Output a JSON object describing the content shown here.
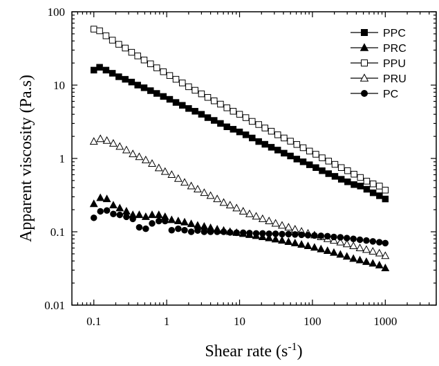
{
  "chart_data": {
    "type": "scatter",
    "xscale": "log",
    "yscale": "log",
    "xlim": [
      0.05,
      5000
    ],
    "ylim": [
      0.01,
      100
    ],
    "xlabel": "Shear rate (s",
    "xlabel_sup": "-1",
    "xlabel_close": ")",
    "ylabel": "Apparent viscosity (Pa.s)",
    "x_ticks": [
      {
        "value": 0.1,
        "label": "0.1"
      },
      {
        "value": 1,
        "label": "1"
      },
      {
        "value": 10,
        "label": "10"
      },
      {
        "value": 100,
        "label": "100"
      },
      {
        "value": 1000,
        "label": "1000"
      }
    ],
    "y_ticks": [
      {
        "value": 0.01,
        "label": "0.01"
      },
      {
        "value": 0.1,
        "label": "0.1"
      },
      {
        "value": 1,
        "label": "1"
      },
      {
        "value": 10,
        "label": "10"
      },
      {
        "value": 100,
        "label": "100"
      }
    ],
    "legend_position": "top-right",
    "series": [
      {
        "name": "PPC",
        "marker": "square",
        "filled": true,
        "x": [
          0.1,
          0.12,
          0.147,
          0.18,
          0.22,
          0.27,
          0.33,
          0.4,
          0.49,
          0.6,
          0.73,
          0.9,
          1.1,
          1.34,
          1.64,
          2.0,
          2.45,
          3.0,
          3.66,
          4.48,
          5.47,
          6.7,
          8.18,
          10,
          12.2,
          14.9,
          18.3,
          22.3,
          27.3,
          33.4,
          40.8,
          49.9,
          61,
          74.6,
          91.2,
          111.5,
          136,
          166.6,
          203.6,
          249,
          304,
          372,
          455,
          556,
          680,
          831,
          1000
        ],
        "y": [
          16,
          17.5,
          16,
          14.5,
          13,
          12,
          11,
          10,
          9.2,
          8.4,
          7.7,
          7.0,
          6.4,
          5.8,
          5.3,
          4.8,
          4.4,
          4.0,
          3.6,
          3.3,
          3.0,
          2.7,
          2.5,
          2.3,
          2.1,
          1.9,
          1.7,
          1.56,
          1.42,
          1.3,
          1.18,
          1.08,
          0.98,
          0.9,
          0.82,
          0.75,
          0.68,
          0.62,
          0.57,
          0.52,
          0.48,
          0.44,
          0.42,
          0.38,
          0.34,
          0.31,
          0.28
        ]
      },
      {
        "name": "PRC",
        "marker": "triangle",
        "filled": true,
        "x": [
          0.1,
          0.123,
          0.151,
          0.185,
          0.227,
          0.28,
          0.343,
          0.42,
          0.516,
          0.63,
          0.78,
          0.95,
          1.17,
          1.44,
          1.76,
          2.17,
          2.66,
          3.27,
          4.0,
          4.93,
          6.05,
          7.4,
          9.1,
          11.2,
          13.7,
          16.9,
          20.7,
          25.4,
          31.2,
          38.3,
          47,
          57.7,
          70.8,
          86.9,
          106.7,
          131,
          161,
          197,
          242,
          297,
          365,
          448,
          550,
          675,
          829,
          1000
        ],
        "y": [
          0.24,
          0.29,
          0.28,
          0.23,
          0.21,
          0.19,
          0.17,
          0.17,
          0.16,
          0.17,
          0.17,
          0.16,
          0.145,
          0.14,
          0.135,
          0.128,
          0.122,
          0.118,
          0.113,
          0.108,
          0.104,
          0.1,
          0.097,
          0.094,
          0.091,
          0.088,
          0.085,
          0.082,
          0.079,
          0.076,
          0.073,
          0.07,
          0.067,
          0.064,
          0.061,
          0.058,
          0.055,
          0.052,
          0.049,
          0.046,
          0.043,
          0.041,
          0.039,
          0.037,
          0.035,
          0.032
        ]
      },
      {
        "name": "PPU",
        "marker": "square",
        "filled": false,
        "x": [
          0.1,
          0.12,
          0.147,
          0.18,
          0.22,
          0.27,
          0.33,
          0.4,
          0.49,
          0.6,
          0.73,
          0.9,
          1.1,
          1.34,
          1.64,
          2.0,
          2.45,
          3.0,
          3.66,
          4.48,
          5.47,
          6.7,
          8.18,
          10,
          12.2,
          14.9,
          18.3,
          22.3,
          27.3,
          33.4,
          40.8,
          49.9,
          61,
          74.6,
          91.2,
          111.5,
          136,
          166.6,
          203.6,
          249,
          304,
          372,
          455,
          556,
          680,
          831,
          1000
        ],
        "y": [
          58,
          55,
          47,
          41,
          36,
          32,
          28,
          25,
          22,
          19.5,
          17.2,
          15.2,
          13.5,
          12,
          10.7,
          9.5,
          8.5,
          7.6,
          6.8,
          6.1,
          5.5,
          4.9,
          4.4,
          4.0,
          3.6,
          3.2,
          2.9,
          2.6,
          2.35,
          2.1,
          1.9,
          1.72,
          1.55,
          1.4,
          1.26,
          1.14,
          1.02,
          0.92,
          0.83,
          0.75,
          0.68,
          0.61,
          0.55,
          0.49,
          0.45,
          0.42,
          0.37
        ]
      },
      {
        "name": "PRU",
        "marker": "triangle",
        "filled": false,
        "x": [
          0.1,
          0.123,
          0.151,
          0.185,
          0.227,
          0.28,
          0.343,
          0.42,
          0.516,
          0.63,
          0.78,
          0.95,
          1.17,
          1.44,
          1.76,
          2.17,
          2.66,
          3.27,
          4.0,
          4.93,
          6.05,
          7.4,
          9.1,
          11.2,
          13.7,
          16.9,
          20.7,
          25.4,
          31.2,
          38.3,
          47,
          57.7,
          70.8,
          86.9,
          106.7,
          131,
          161,
          197,
          242,
          297,
          365,
          448,
          550,
          675,
          829,
          1000
        ],
        "y": [
          1.7,
          1.85,
          1.75,
          1.6,
          1.45,
          1.3,
          1.15,
          1.05,
          0.95,
          0.85,
          0.74,
          0.66,
          0.6,
          0.53,
          0.47,
          0.42,
          0.38,
          0.34,
          0.31,
          0.28,
          0.25,
          0.23,
          0.21,
          0.19,
          0.175,
          0.162,
          0.15,
          0.14,
          0.13,
          0.122,
          0.115,
          0.108,
          0.101,
          0.095,
          0.09,
          0.085,
          0.08,
          0.076,
          0.072,
          0.068,
          0.064,
          0.06,
          0.057,
          0.054,
          0.051,
          0.047
        ]
      },
      {
        "name": "PC",
        "marker": "circle",
        "filled": true,
        "x": [
          0.1,
          0.123,
          0.151,
          0.185,
          0.227,
          0.28,
          0.343,
          0.42,
          0.516,
          0.63,
          0.78,
          0.95,
          1.17,
          1.44,
          1.76,
          2.17,
          2.66,
          3.27,
          4.0,
          4.93,
          6.05,
          7.4,
          9.1,
          11.2,
          13.7,
          16.9,
          20.7,
          25.4,
          31.2,
          38.3,
          47,
          57.7,
          70.8,
          86.9,
          106.7,
          131,
          161,
          197,
          242,
          297,
          365,
          448,
          550,
          675,
          829,
          1000
        ],
        "y": [
          0.155,
          0.19,
          0.195,
          0.175,
          0.17,
          0.16,
          0.15,
          0.115,
          0.11,
          0.13,
          0.14,
          0.14,
          0.105,
          0.11,
          0.105,
          0.1,
          0.104,
          0.1,
          0.1,
          0.1,
          0.1,
          0.098,
          0.097,
          0.097,
          0.096,
          0.095,
          0.095,
          0.094,
          0.094,
          0.093,
          0.093,
          0.092,
          0.091,
          0.09,
          0.089,
          0.088,
          0.087,
          0.085,
          0.084,
          0.082,
          0.08,
          0.078,
          0.076,
          0.074,
          0.072,
          0.07
        ]
      }
    ]
  }
}
